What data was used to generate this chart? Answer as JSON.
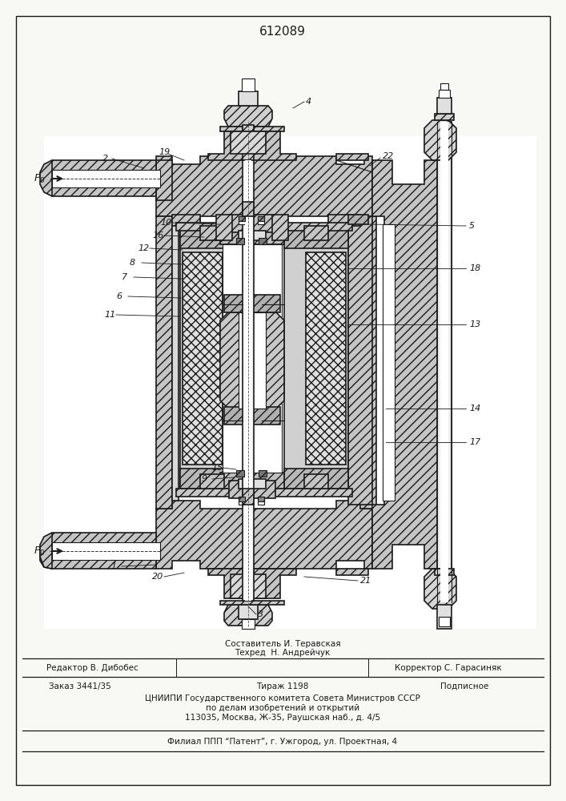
{
  "patent_number": "612089",
  "bg": "#f8f8f5",
  "lc": "#1a1a1a",
  "hatch_gray": "#888888",
  "white": "#ffffff",
  "light_gray": "#e8e8e8",
  "mid_gray": "#c8c8c8",
  "dark_hatch": "#555555",
  "footer": {
    "line1_center": "Составитель И. Теравская",
    "line2_center": "Техред  Н. Андрейчук",
    "editor": "Редактор В. Дибобес",
    "corrector": "Корректор С. Гарасиняк",
    "order": "Заказ 3441/35",
    "tirazh": "Тираж 1198",
    "podpisnoe": "Подписное",
    "cniip1": "ЦНИИПИ Государственного комитета Совета Министров СССР",
    "cniip2": "по делам изобретений и открытий",
    "addr": "113035, Москва, Ж-35, Раушская наб., д. 4/5",
    "filial": "Филиал ППП “Патент”, г. Ужгород, ул. Проектная, 4"
  }
}
